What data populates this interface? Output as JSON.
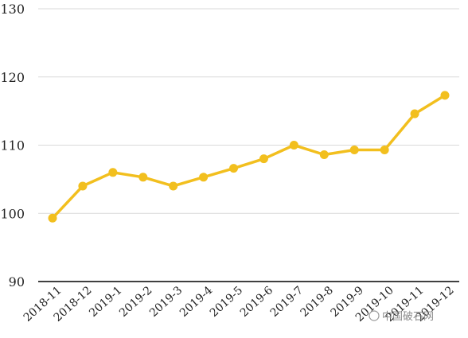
{
  "chart_data": {
    "type": "line",
    "categories": [
      "2018-11",
      "2018-12",
      "2019-1",
      "2019-2",
      "2019-3",
      "2019-4",
      "2019-5",
      "2019-6",
      "2019-7",
      "2019-8",
      "2019-9",
      "2019-10",
      "2019-11",
      "2019-12"
    ],
    "values": [
      99.3,
      104.0,
      106.0,
      105.3,
      104.0,
      105.3,
      106.6,
      108.0,
      110.0,
      108.6,
      109.3,
      109.3,
      114.6,
      117.3
    ],
    "title": "",
    "xlabel": "",
    "ylabel": "",
    "ylim": [
      90,
      130
    ],
    "yticks": [
      "90",
      "100",
      "110",
      "120",
      "130"
    ],
    "grid": true,
    "color": "#F2BF1E"
  },
  "watermark": {
    "text": "中国破石网"
  }
}
